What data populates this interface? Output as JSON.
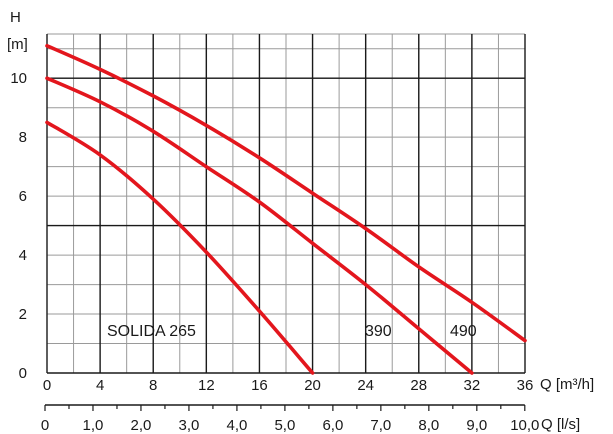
{
  "chart_data": {
    "type": "line",
    "title": "",
    "y_axis": {
      "label": "H",
      "unit": "[m]",
      "ylim": [
        0,
        11.5
      ],
      "ticks": [
        0,
        2,
        4,
        6,
        8,
        10
      ]
    },
    "x_axis": {
      "label": "Q [m³/h]",
      "xlim": [
        0,
        36
      ],
      "ticks": [
        0,
        4,
        8,
        12,
        16,
        20,
        24,
        28,
        32,
        36
      ]
    },
    "x2_axis": {
      "label": "Q [l/s]",
      "ticks": [
        {
          "value": 0,
          "text": "0"
        },
        {
          "value": 1,
          "text": "1,0"
        },
        {
          "value": 2,
          "text": "2,0"
        },
        {
          "value": 3,
          "text": "3,0"
        },
        {
          "value": 4,
          "text": "4,0"
        },
        {
          "value": 5,
          "text": "5,0"
        },
        {
          "value": 6,
          "text": "6,0"
        },
        {
          "value": 7,
          "text": "7,0"
        },
        {
          "value": 8,
          "text": "8,0"
        },
        {
          "value": 9,
          "text": "9,0"
        },
        {
          "value": 10,
          "text": "10,0"
        }
      ]
    },
    "grid": true,
    "line_color": "#e3161d",
    "series": [
      {
        "name": "SOLIDA 265",
        "x": [
          0,
          4,
          8,
          12,
          16,
          20
        ],
        "y": [
          8.5,
          7.4,
          5.9,
          4.1,
          2.1,
          0.0
        ]
      },
      {
        "name": "390",
        "x": [
          0,
          4,
          8,
          12,
          16,
          20,
          24,
          28,
          32
        ],
        "y": [
          10.0,
          9.2,
          8.2,
          7.0,
          5.8,
          4.4,
          3.0,
          1.5,
          0.0
        ]
      },
      {
        "name": "490",
        "x": [
          0,
          4,
          8,
          12,
          16,
          20,
          24,
          28,
          32,
          36
        ],
        "y": [
          11.1,
          10.3,
          9.4,
          8.4,
          7.3,
          6.1,
          4.9,
          3.6,
          2.4,
          1.1
        ]
      }
    ]
  }
}
